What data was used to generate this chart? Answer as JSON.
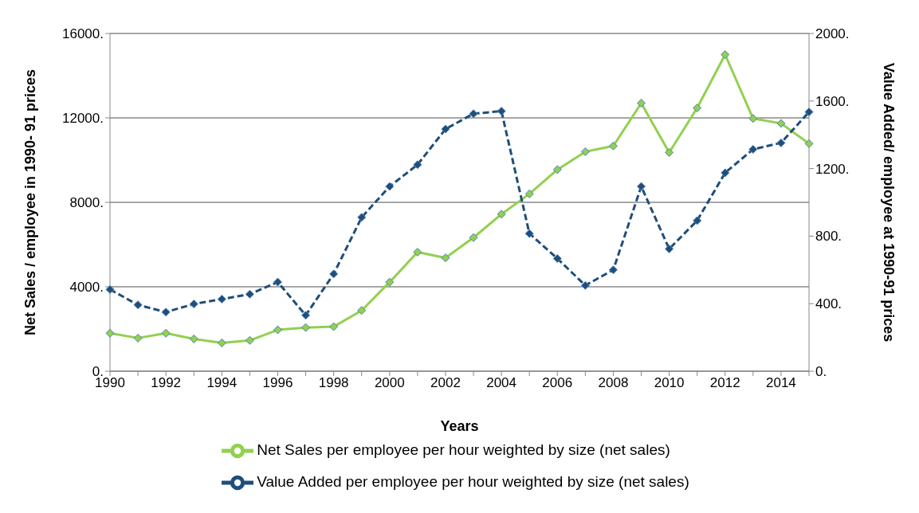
{
  "chart_data": {
    "type": "line",
    "xlabel": "Years",
    "ylabel": "Net Sales / employee in 1990- 91 prices",
    "y2label": "Value Added/ employee at 1990-91 prices",
    "categories": [
      "1990",
      null,
      "1992",
      null,
      "1994",
      null,
      "1996",
      null,
      "1998",
      null,
      "2000",
      null,
      "2002",
      null,
      "2004",
      null,
      "2006",
      null,
      "2008",
      null,
      "2010",
      null,
      "2012",
      null,
      "2014",
      null
    ],
    "series": [
      {
        "name": "Net Sales per employee per hour weighted by size (net sales)",
        "color": "#92d050",
        "line_style": "solid",
        "values": [
          1800,
          1570,
          1800,
          1530,
          1340,
          1460,
          1960,
          2070,
          2110,
          2880,
          4220,
          5640,
          5370,
          6330,
          7440,
          8400,
          9550,
          10400,
          10670,
          12700,
          10360,
          12470,
          15000,
          11970,
          11740,
          10780
        ]
      },
      {
        "name": "Value Added per employee per hour weighted by size (net sales)",
        "color": "#1f4e79",
        "line_style": "dashed",
        "axis": "y2",
        "values": [
          484,
          393,
          350,
          398,
          427,
          456,
          528,
          331,
          576,
          911,
          1094,
          1223,
          1434,
          1525,
          1540,
          815,
          667,
          508,
          600,
          1094,
          724,
          892,
          1175,
          1314,
          1352,
          1535
        ]
      }
    ],
    "ylim": [
      0,
      16000
    ],
    "yticks": [
      {
        "value": 0,
        "label": "0."
      },
      {
        "value": 4000,
        "label": "4000."
      },
      {
        "value": 8000,
        "label": "8000."
      },
      {
        "value": 12000,
        "label": "12000."
      },
      {
        "value": 16000,
        "label": "16000."
      }
    ],
    "y2lim": [
      0,
      2000
    ],
    "y2ticks": [
      {
        "value": 0,
        "label": "0."
      },
      {
        "value": 400,
        "label": "400."
      },
      {
        "value": 800,
        "label": "800."
      },
      {
        "value": 1200,
        "label": "1200."
      },
      {
        "value": 1600,
        "label": "1600."
      },
      {
        "value": 2000,
        "label": "2000."
      }
    ],
    "grid": "y",
    "legend": "bottom",
    "marker": "diamond"
  }
}
